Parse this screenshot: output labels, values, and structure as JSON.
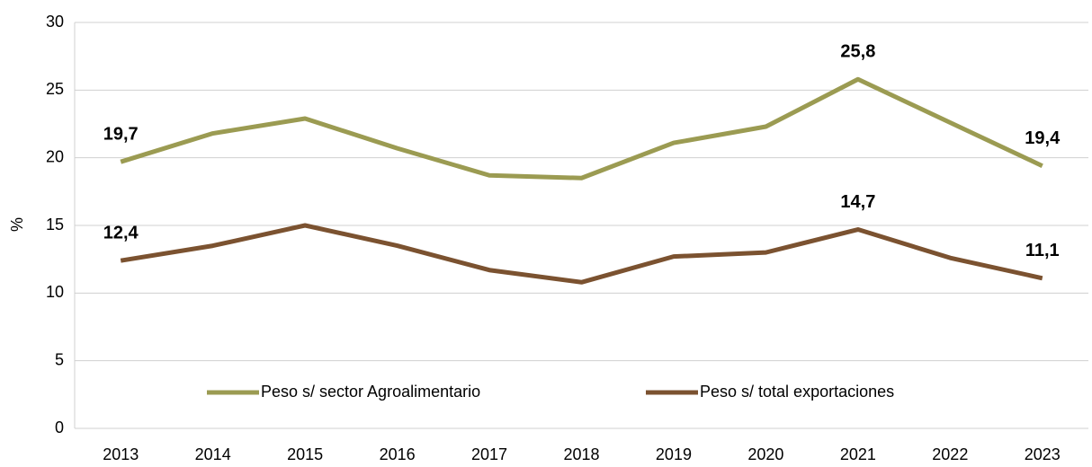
{
  "chart_data": {
    "type": "line",
    "y_label": "%",
    "categories": [
      "2013",
      "2014",
      "2015",
      "2016",
      "2017",
      "2018",
      "2019",
      "2020",
      "2021",
      "2022",
      "2023"
    ],
    "series": [
      {
        "name": "Peso s/ sector Agroalimentario",
        "color": "#9b9b52",
        "values": [
          19.7,
          21.8,
          22.9,
          20.7,
          18.7,
          18.5,
          21.1,
          22.3,
          25.8,
          22.6,
          19.4
        ],
        "value_labels": [
          "19,7",
          null,
          null,
          null,
          null,
          null,
          null,
          null,
          "25,8",
          null,
          "19,4"
        ]
      },
      {
        "name": "Peso s/ total exportaciones",
        "color": "#7b5230",
        "values": [
          12.4,
          13.5,
          15.0,
          13.5,
          11.7,
          10.8,
          12.7,
          13.0,
          14.7,
          12.6,
          11.1
        ],
        "value_labels": [
          "12,4",
          null,
          null,
          null,
          null,
          null,
          null,
          null,
          "14,7",
          null,
          "11,1"
        ]
      }
    ],
    "ylim": [
      0,
      30
    ],
    "yticks": [
      0,
      5,
      10,
      15,
      20,
      25,
      30
    ],
    "grid": true,
    "legend": "bottom"
  }
}
